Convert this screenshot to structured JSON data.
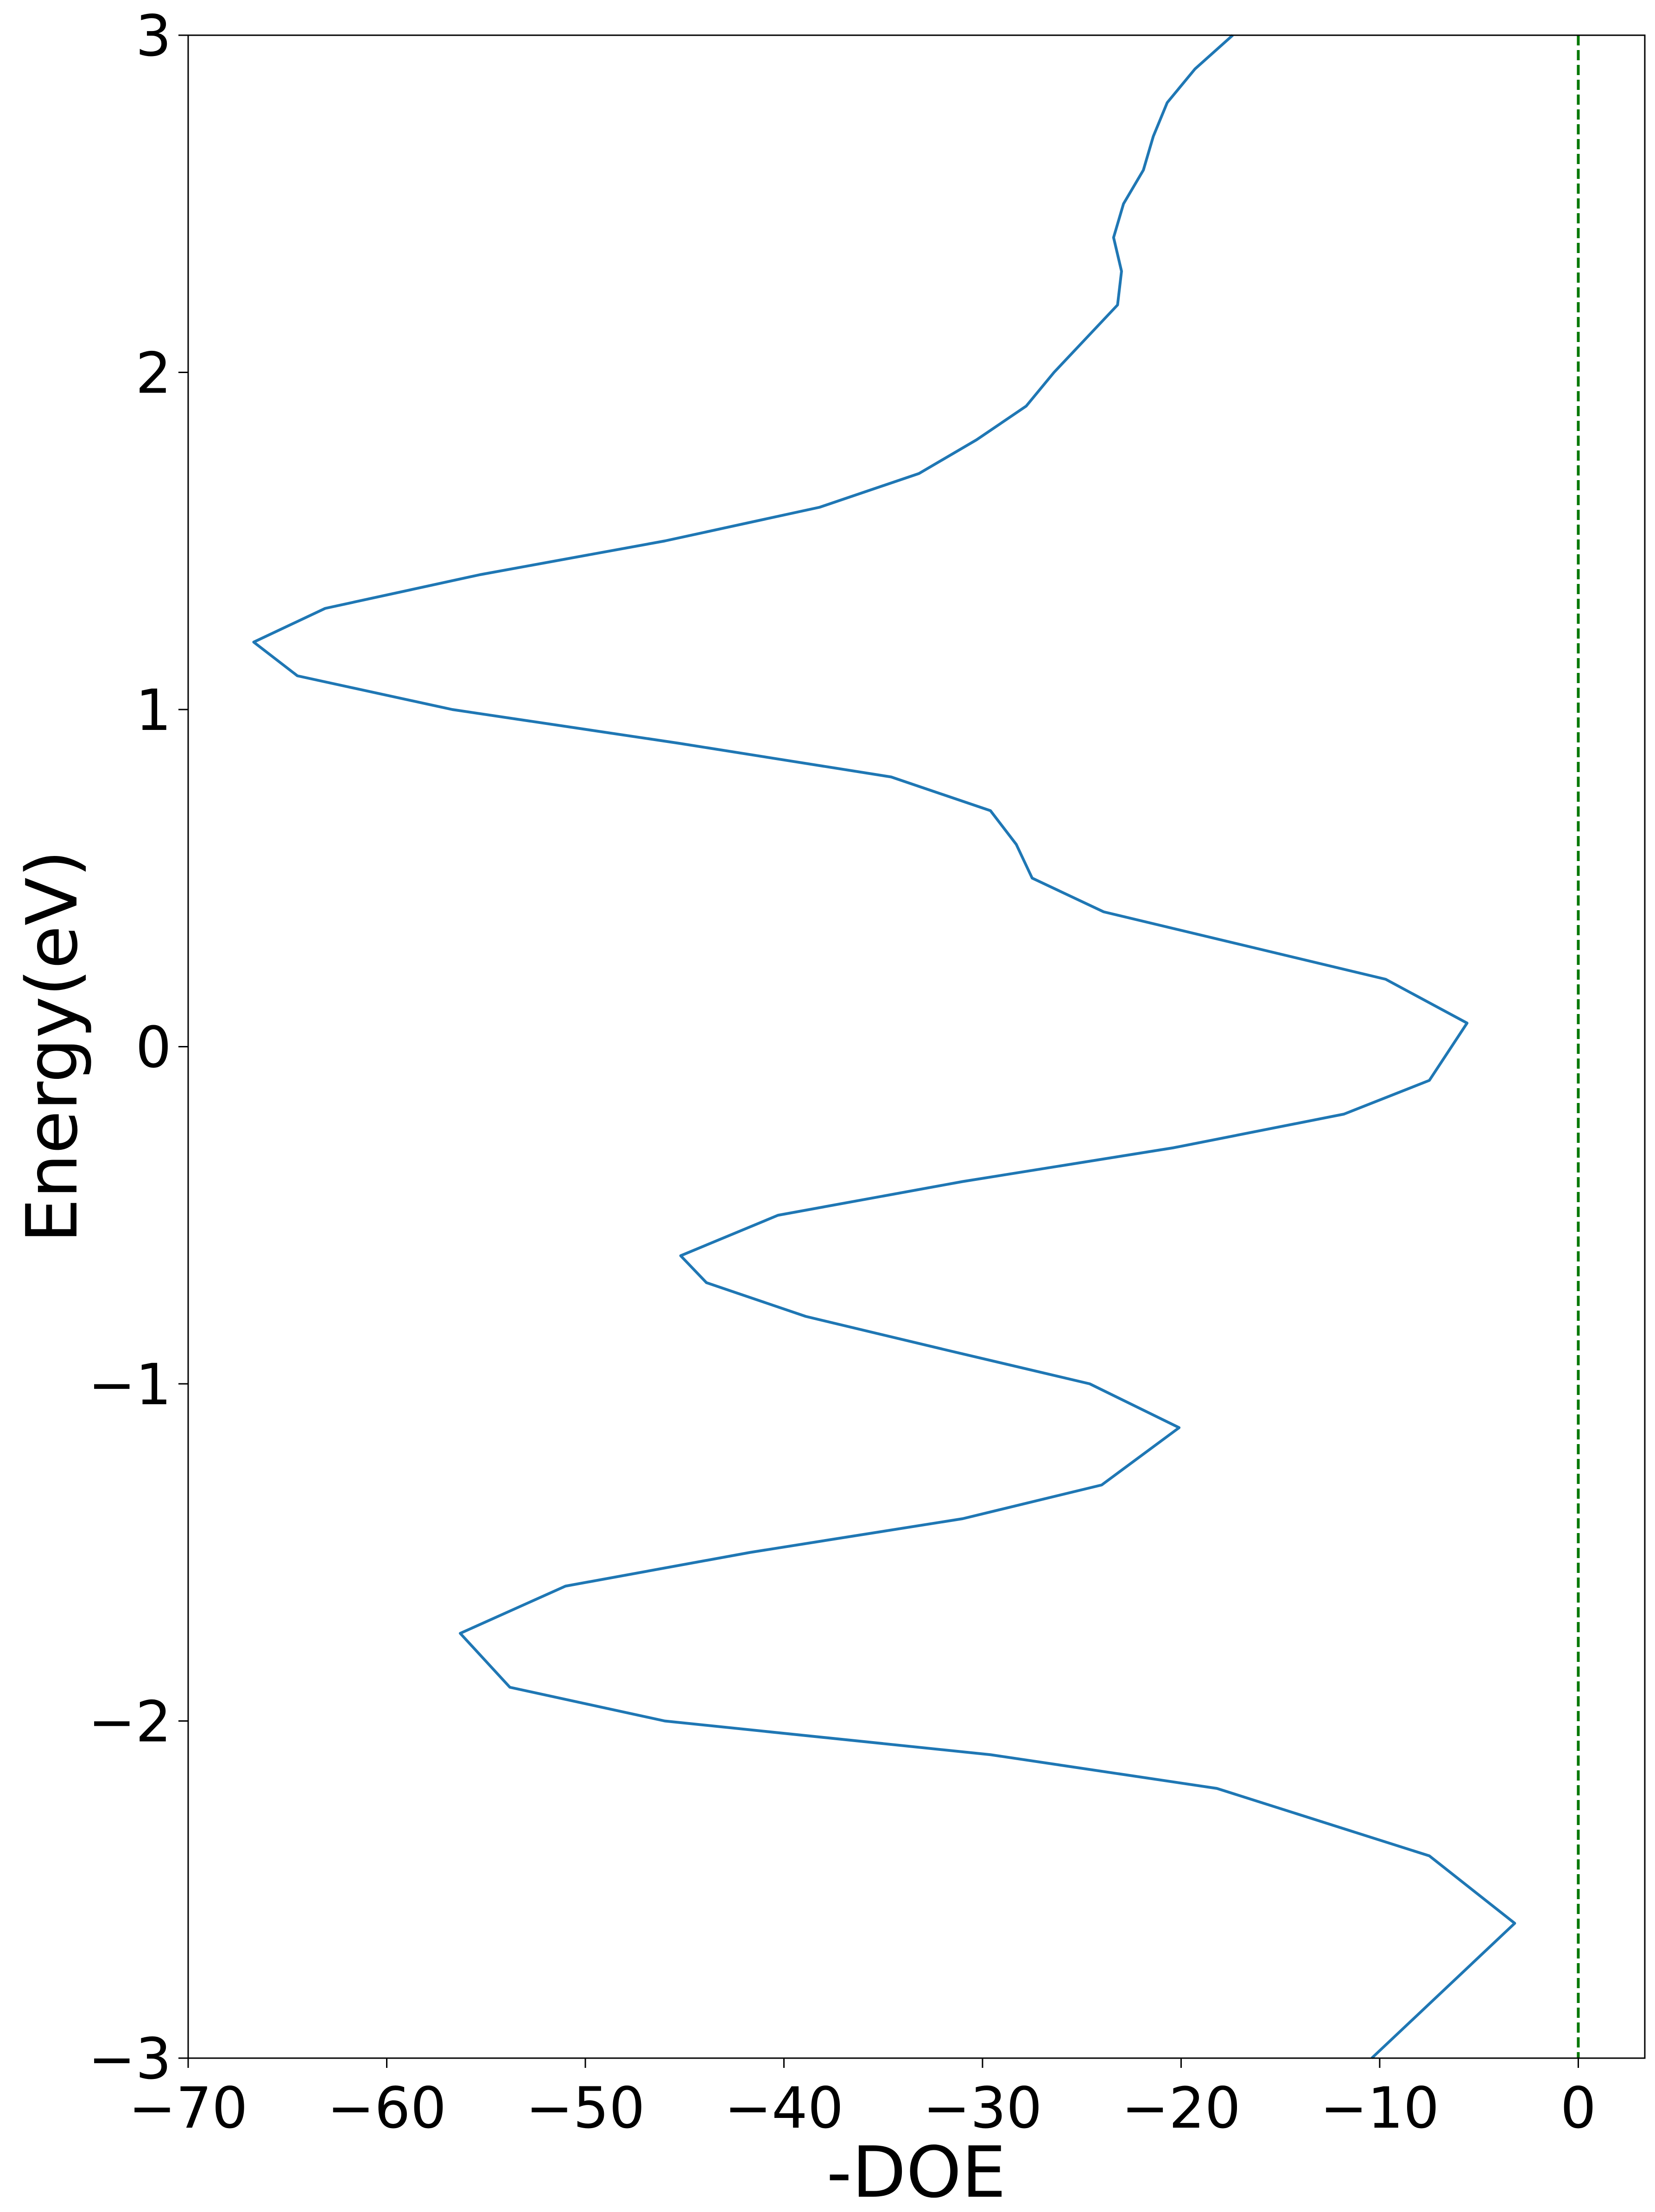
{
  "chart_data": {
    "type": "line",
    "xlabel": "-DOE",
    "ylabel": "Energy(eV)",
    "series": [
      {
        "color": "#1f77b4",
        "x": [
          -10.4,
          -3.2,
          -7.5,
          -18.2,
          -29.6,
          -46,
          -53.8,
          -56.3,
          -51,
          -41.7,
          -31,
          -24,
          -20.1,
          -24.6,
          -31.8,
          -38.9,
          -43.9,
          -45.2,
          -40.3,
          -31,
          -20.4,
          -11.8,
          -7.5,
          -5.6,
          -9.7,
          -16.8,
          -23.9,
          -27.5,
          -28.3,
          -29.6,
          -34.6,
          -45.3,
          -56.7,
          -64.5,
          -66.7,
          -63.1,
          -55.3,
          -46,
          -38.2,
          -33.2,
          -30.3,
          -27.8,
          -26.4,
          -24.8,
          -23.2,
          -23,
          -23.4,
          -22.9,
          -21.9,
          -21.4,
          -20.7,
          -19.3,
          -17.4
        ],
        "values": [
          -3,
          -2.6,
          -2.4,
          -2.2,
          -2.1,
          -2.0,
          -1.9,
          -1.74,
          -1.6,
          -1.5,
          -1.4,
          -1.3,
          -1.13,
          -1.0,
          -0.9,
          -0.8,
          -0.7,
          -0.62,
          -0.5,
          -0.4,
          -0.3,
          -0.2,
          -0.1,
          0.07,
          0.2,
          0.3,
          0.4,
          0.5,
          0.6,
          0.7,
          0.8,
          0.9,
          1.0,
          1.1,
          1.2,
          1.3,
          1.4,
          1.5,
          1.6,
          1.7,
          1.8,
          1.9,
          2.0,
          2.1,
          2.2,
          2.3,
          2.4,
          2.5,
          2.6,
          2.7,
          2.8,
          2.9,
          3.0
        ]
      }
    ],
    "vlines": [
      {
        "x": 0,
        "color": "#007700",
        "dashed": true
      }
    ],
    "xlim": [
      -70,
      3.35
    ],
    "ylim": [
      -3,
      3
    ],
    "xticks": [
      {
        "value": -70,
        "label": "−70"
      },
      {
        "value": -60,
        "label": "−60"
      },
      {
        "value": -50,
        "label": "−50"
      },
      {
        "value": -40,
        "label": "−40"
      },
      {
        "value": -30,
        "label": "−30"
      },
      {
        "value": -20,
        "label": "−20"
      },
      {
        "value": -10,
        "label": "−10"
      },
      0
    ],
    "yticks": [
      {
        "value": -3,
        "label": "−3"
      },
      {
        "value": -2,
        "label": "−2"
      },
      {
        "value": -1,
        "label": "−1"
      },
      0,
      1,
      2,
      3
    ],
    "grid": false
  }
}
